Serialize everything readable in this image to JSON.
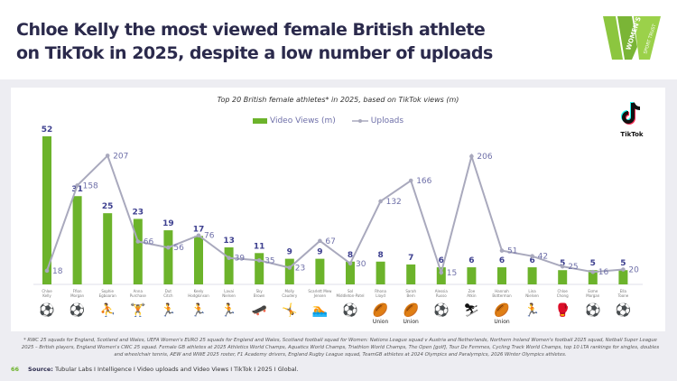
{
  "header": {
    "title_line1": "Chloe Kelly the most viewed female British athlete",
    "title_line2": "on TikTok in 2025, despite a low number of uploads",
    "logo_text_1": "WOMEN'S",
    "logo_text_2": "SPORT TRUST"
  },
  "tiktok_label": "TikTok",
  "footnote": "* RWC 25 squads for England, Scotland and Wales, UEFA Women's EURO 25 squads for England and Wales, Scotland football squad for Women: Nations League squad v Austria and Netherlands, Northern Ireland Women's football 2025 squad, Netball Super League 2025 – British players, England Women's CWC 25 squad. Female GB athletes at 2025 Athletics World Champs, Aquatics World Champs, Triathlon World Champs, The Open [golf], Tour De Femmes, Cycling Track World Champs, top 10 LTA rankings for singles, doubles and wheelchair tennis, AEW and WWE 2025 roster, F1 Academy drivers, England Rugby League squad, TeamGB athletes at 2024 Olympics and Paralympics, 2026 Winter Olympics athletes.",
  "source": {
    "page": "66",
    "label": "Source:",
    "text": "Tubular Labs I Intelligence I Video uploads and Video Views I TikTok I 2025 I Global."
  },
  "colors": {
    "bar": "#6cb32b",
    "line": "#a9a9bd",
    "label": "#3d3f8f",
    "uploads_label": "#6e6fa8"
  },
  "chart_data": {
    "type": "bar",
    "title": "Top 20 British female athletes* in 2025, based on TikTok views (m)",
    "legend": [
      "Video Views (m)",
      "Uploads"
    ],
    "legend_position": "top-center",
    "categories": [
      "Chloe Kelly",
      "Ffion Morgan",
      "Sophie Egboaran",
      "Anna Purchase",
      "Dut Citch",
      "Keely Hodgkinson",
      "Lavai Nielsen",
      "Sky Brown",
      "Molly Caudery",
      "Scarlett Mew Jensen",
      "Sol Middleton-Patel",
      "Rhona Lloyd",
      "Sarah Bern",
      "Alessia Russo",
      "Zoe Atkin",
      "Hannah Botterman",
      "Lina Nielsen",
      "Chloe Chong",
      "Esme Morgan",
      "Ella Toone"
    ],
    "sports": [
      "football",
      "football",
      "netball",
      "hammer",
      "running",
      "running",
      "running",
      "skateboard",
      "pole-vault",
      "swimming",
      "football",
      "rugby",
      "rugby",
      "football",
      "skiing",
      "rugby",
      "running",
      "wrestling",
      "football",
      "football"
    ],
    "series": [
      {
        "name": "Video Views (m)",
        "type": "bar",
        "values": [
          52,
          31,
          25,
          23,
          19,
          17,
          13,
          11,
          9,
          9,
          8,
          8,
          7,
          6,
          6,
          6,
          6,
          5,
          5,
          5
        ]
      },
      {
        "name": "Uploads",
        "type": "line",
        "values": [
          18,
          158,
          207,
          66,
          56,
          76,
          39,
          35,
          23,
          67,
          30,
          132,
          166,
          15,
          206,
          51,
          42,
          25,
          16,
          20
        ]
      }
    ],
    "icon_caption": "Union",
    "grid": false
  }
}
